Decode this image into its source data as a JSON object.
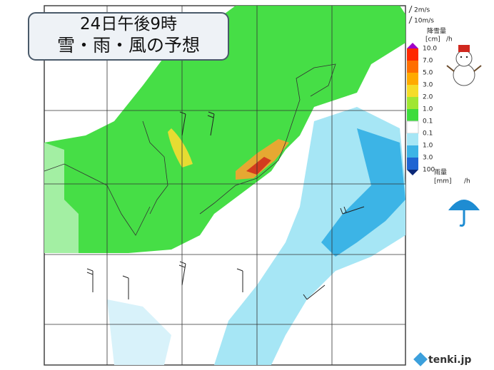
{
  "header": {
    "time": "24日午後9時",
    "title": "雪・雨・風の予想"
  },
  "legend": {
    "wind_short": "2m/s",
    "wind_long": "10m/s",
    "snow_label": "降雪量",
    "snow_unit": "[cm]",
    "snow_per": "/h",
    "levels": [
      "10.0",
      "7.0",
      "5.0",
      "3.0",
      "2.0",
      "1.0",
      "0.1",
      "0.1",
      "1.0",
      "3.0",
      "100"
    ],
    "rain_label": "雨量",
    "rain_unit": "[mm]",
    "rain_per": "/h"
  },
  "brand": "tenki.jp"
}
